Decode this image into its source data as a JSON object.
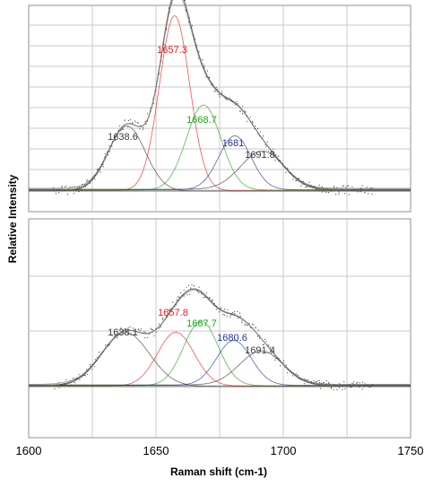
{
  "ylabel": "Relative Intensity",
  "xlabel": "Raman shift (cm-1)",
  "xlim": [
    1600,
    1750
  ],
  "x_ticks": [
    "1600",
    "1650",
    "1700",
    "1750"
  ],
  "colors": {
    "black": "#3a3a3a",
    "red": "#ee1c1c",
    "green": "#1aa51a",
    "blue": "#1f2fa0",
    "envelope": "#666666",
    "grid": "#c8c8c8",
    "frame": "#909090"
  },
  "chart_data": [
    {
      "type": "line",
      "panel": "top",
      "xlim": [
        1600,
        1750
      ],
      "ylim": [
        0,
        1.0
      ],
      "grid": true,
      "peaks": [
        {
          "label": "1638.6",
          "center": 1638.6,
          "height": 0.29,
          "fwhm": 17,
          "color": "black"
        },
        {
          "label": "1657.3",
          "center": 1657.3,
          "height": 0.78,
          "fwhm": 14,
          "color": "red"
        },
        {
          "label": "1668.7",
          "center": 1668.7,
          "height": 0.38,
          "fwhm": 16,
          "color": "green"
        },
        {
          "label": "1681",
          "center": 1681.0,
          "height": 0.24,
          "fwhm": 15,
          "color": "blue"
        },
        {
          "label": "1691.8",
          "center": 1691.8,
          "height": 0.17,
          "fwhm": 20,
          "color": "black"
        }
      ]
    },
    {
      "type": "line",
      "panel": "bottom",
      "xlim": [
        1600,
        1750
      ],
      "ylim": [
        0,
        1.0
      ],
      "grid": true,
      "peaks": [
        {
          "label": "1638.1",
          "center": 1638.1,
          "height": 0.3,
          "fwhm": 22,
          "color": "black"
        },
        {
          "label": "1657.8",
          "center": 1657.8,
          "height": 0.3,
          "fwhm": 17,
          "color": "red"
        },
        {
          "label": "1667.7",
          "center": 1667.7,
          "height": 0.36,
          "fwhm": 16,
          "color": "green"
        },
        {
          "label": "1680.6",
          "center": 1680.6,
          "height": 0.25,
          "fwhm": 16,
          "color": "blue"
        },
        {
          "label": "1691.4",
          "center": 1691.4,
          "height": 0.19,
          "fwhm": 20,
          "color": "black"
        }
      ]
    }
  ]
}
